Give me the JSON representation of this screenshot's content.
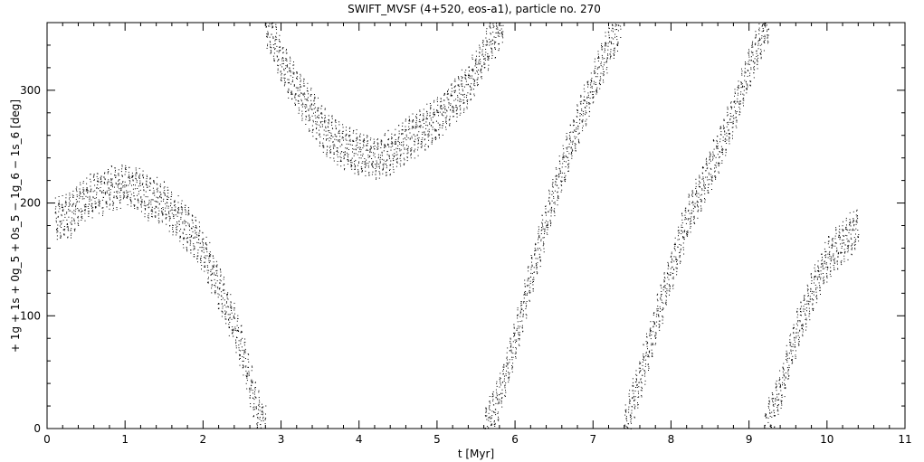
{
  "chart_data": {
    "type": "scatter",
    "title": "SWIFT_MVSF (4+520, eos-a1), particle no. 270",
    "xlabel": "t [Myr]",
    "ylabel": "+ 1g + 1s + 0g_5 + 0s_5 − 1g_6 − 1s_6 [deg]",
    "xlim": [
      0,
      11
    ],
    "ylim": [
      0,
      360
    ],
    "x_ticks": [
      "0",
      "1",
      "2",
      "3",
      "4",
      "5",
      "6",
      "7",
      "8",
      "9",
      "10",
      "11"
    ],
    "y_ticks": [
      "0",
      "100",
      "200",
      "300"
    ],
    "grid": false,
    "color": "#000000",
    "series": [
      {
        "points": [
          [
            0.1,
            185
          ],
          [
            0.3,
            190
          ],
          [
            0.5,
            205
          ],
          [
            0.7,
            210
          ],
          [
            0.9,
            215
          ],
          [
            1.1,
            215
          ],
          [
            1.3,
            205
          ],
          [
            1.5,
            200
          ],
          [
            1.7,
            185
          ],
          [
            1.9,
            170
          ],
          [
            2.05,
            150
          ],
          [
            2.2,
            125
          ],
          [
            2.35,
            100
          ],
          [
            2.5,
            70
          ],
          [
            2.6,
            40
          ],
          [
            2.7,
            15
          ],
          [
            2.8,
            0
          ]
        ]
      },
      {
        "points": [
          [
            2.8,
            360
          ],
          [
            2.9,
            345
          ],
          [
            3.0,
            325
          ],
          [
            3.2,
            300
          ],
          [
            3.4,
            280
          ],
          [
            3.6,
            260
          ],
          [
            3.8,
            250
          ],
          [
            4.0,
            245
          ],
          [
            4.2,
            240
          ],
          [
            4.4,
            245
          ],
          [
            4.6,
            255
          ],
          [
            4.8,
            265
          ],
          [
            5.0,
            275
          ],
          [
            5.2,
            290
          ],
          [
            5.4,
            305
          ],
          [
            5.55,
            325
          ],
          [
            5.7,
            345
          ],
          [
            5.85,
            360
          ]
        ]
      },
      {
        "points": [
          [
            5.6,
            0
          ],
          [
            5.8,
            30
          ],
          [
            6.0,
            80
          ],
          [
            6.2,
            135
          ],
          [
            6.4,
            185
          ],
          [
            6.6,
            230
          ],
          [
            6.8,
            270
          ],
          [
            7.0,
            305
          ],
          [
            7.2,
            340
          ],
          [
            7.35,
            360
          ]
        ]
      },
      {
        "points": [
          [
            7.4,
            0
          ],
          [
            7.6,
            45
          ],
          [
            7.8,
            95
          ],
          [
            8.0,
            140
          ],
          [
            8.2,
            185
          ],
          [
            8.4,
            215
          ],
          [
            8.6,
            245
          ],
          [
            8.8,
            280
          ],
          [
            9.0,
            320
          ],
          [
            9.2,
            355
          ],
          [
            9.25,
            360
          ]
        ]
      },
      {
        "points": [
          [
            9.2,
            0
          ],
          [
            9.4,
            35
          ],
          [
            9.6,
            85
          ],
          [
            9.8,
            120
          ],
          [
            10.0,
            150
          ],
          [
            10.2,
            165
          ],
          [
            10.4,
            180
          ]
        ]
      }
    ]
  }
}
